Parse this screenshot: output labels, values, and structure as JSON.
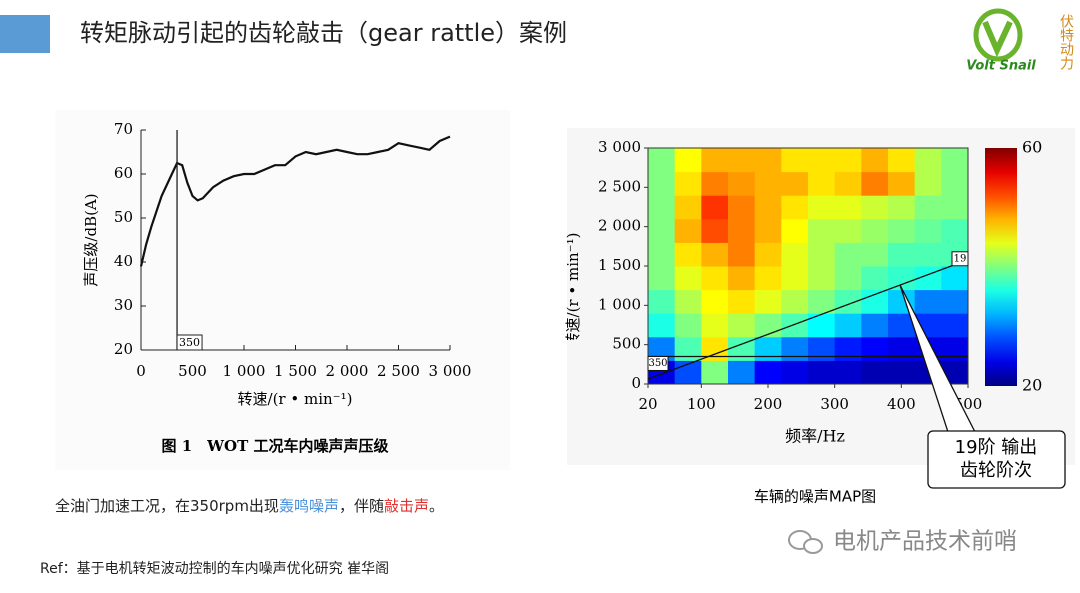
{
  "header": {
    "title": "转矩脉动引起的齿轮敲击（gear rattle）案例",
    "logo_text": "Volt Snail",
    "logo_side": "伏特动力"
  },
  "chart_data": [
    {
      "type": "line",
      "x_label": "转速/(r • min⁻¹)",
      "y_label": "声压级/dB(A)",
      "caption": "图 1　WOT 工况车内噪声声压级",
      "color": "#111111",
      "x": [
        0,
        50,
        100,
        200,
        300,
        350,
        400,
        450,
        500,
        550,
        600,
        700,
        800,
        900,
        1000,
        1100,
        1200,
        1300,
        1400,
        1500,
        1600,
        1700,
        1800,
        1900,
        2000,
        2100,
        2200,
        2300,
        2400,
        2500,
        2600,
        2700,
        2800,
        2900,
        3000
      ],
      "values": [
        39,
        44,
        48,
        55,
        60,
        62.5,
        62,
        58,
        55,
        54,
        54.5,
        57,
        58.5,
        59.5,
        60,
        60,
        61,
        62,
        62,
        64,
        65,
        64.5,
        65,
        65.5,
        65,
        64.5,
        64.5,
        65,
        65.5,
        67,
        66.5,
        66,
        65.5,
        67.5,
        68.5
      ],
      "xlim": [
        0,
        3000
      ],
      "ylim": [
        20,
        70
      ],
      "xticks": [
        0,
        500,
        {
          "value": 1000,
          "label": "1 000"
        },
        {
          "value": 1500,
          "label": "1 500"
        },
        {
          "value": 2000,
          "label": "2 000"
        },
        {
          "value": 2500,
          "label": "2 500"
        },
        {
          "value": 3000,
          "label": "3 000"
        }
      ],
      "yticks": [
        20,
        30,
        40,
        50,
        60,
        70
      ],
      "marker": {
        "value": 350,
        "label": "350"
      }
    },
    {
      "type": "heatmap",
      "x_label": "频率/Hz",
      "y_label": "转速/(r • min⁻¹)",
      "caption": "车辆的噪声MAP图",
      "xbins": [
        20,
        60,
        100,
        140,
        180,
        220,
        260,
        300,
        340,
        380,
        420,
        460,
        500
      ],
      "ybins": [
        0,
        300,
        600,
        900,
        1200,
        1500,
        1800,
        2100,
        2400,
        2700,
        3000
      ],
      "z": [
        [
          24,
          28,
          40,
          30,
          25,
          24,
          23,
          23,
          22,
          22,
          22,
          22
        ],
        [
          30,
          38,
          46,
          38,
          33,
          30,
          28,
          26,
          25,
          24,
          24,
          24
        ],
        [
          36,
          40,
          44,
          42,
          40,
          38,
          35,
          33,
          30,
          28,
          27,
          27
        ],
        [
          38,
          42,
          45,
          46,
          44,
          42,
          40,
          38,
          36,
          33,
          30,
          30
        ],
        [
          40,
          44,
          46,
          48,
          46,
          44,
          42,
          40,
          38,
          37,
          36,
          34
        ],
        [
          40,
          46,
          48,
          50,
          47,
          44,
          42,
          40,
          40,
          38,
          38,
          38
        ],
        [
          40,
          48,
          52,
          50,
          48,
          45,
          42,
          42,
          41,
          40,
          39,
          38
        ],
        [
          40,
          47,
          53,
          50,
          48,
          46,
          44,
          44,
          43,
          42,
          40,
          40
        ],
        [
          40,
          46,
          50,
          49,
          48,
          48,
          46,
          47,
          50,
          48,
          42,
          40
        ],
        [
          40,
          45,
          48,
          48,
          48,
          46,
          46,
          46,
          48,
          46,
          42,
          40
        ]
      ],
      "xlim": [
        20,
        500
      ],
      "ylim": [
        0,
        3000
      ],
      "xticks": [
        20,
        100,
        200,
        300,
        400,
        500
      ],
      "yticks": [
        0,
        500,
        {
          "value": 1000,
          "label": "1 000"
        },
        {
          "value": 1500,
          "label": "1 500"
        },
        {
          "value": 2000,
          "label": "2 000"
        },
        {
          "value": 2500,
          "label": "2 500"
        },
        {
          "value": 3000,
          "label": "3 000"
        }
      ],
      "clim": [
        20,
        60
      ],
      "colorbar_ticks": [
        20,
        60
      ],
      "rpm_marker": {
        "value": 350,
        "label": "350"
      },
      "order_line": {
        "label": "19",
        "x": [
          20,
          500
        ],
        "y": [
          63,
          1579
        ]
      },
      "callout": [
        "19阶 输出",
        "齿轮阶次"
      ]
    }
  ],
  "note": [
    {
      "text": "全油门加速工况，在350rpm出现",
      "color": "#222222"
    },
    {
      "text": "轰鸣噪声",
      "color": "#4a90d9"
    },
    {
      "text": "，伴随",
      "color": "#222222"
    },
    {
      "text": "敲击声",
      "color": "#e03030"
    },
    {
      "text": "。",
      "color": "#222222"
    }
  ],
  "ref": "Ref：基于电机转矩波动控制的车内噪声优化研究 崔华阁",
  "watermark": "电机产品技术前哨"
}
